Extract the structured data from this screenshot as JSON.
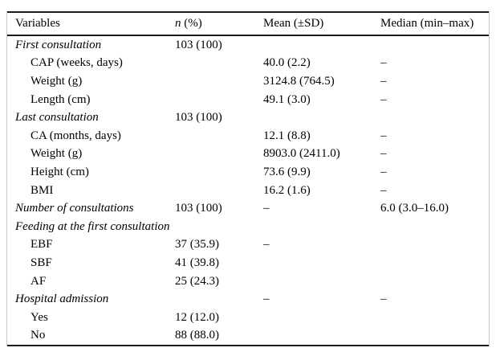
{
  "page": {
    "background": "#ffffff"
  },
  "colors": {
    "text": "#000000",
    "rule": "#1b1b1b",
    "frame": "#c9c9c9",
    "background": "#ffffff"
  },
  "table": {
    "columns": [
      {
        "italic_part": "",
        "label": "Variables"
      },
      {
        "italic_part": "n",
        "label": " (%)"
      },
      {
        "italic_part": "",
        "label": "Mean (±SD)"
      },
      {
        "italic_part": "",
        "label": "Median (min–max)"
      }
    ],
    "rows": [
      {
        "variable": "First consultation",
        "style": "group",
        "n": "103 (100)",
        "mean": "",
        "median": ""
      },
      {
        "variable": "CAP (weeks, days)",
        "style": "sub",
        "n": "",
        "mean": "40.0 (2.2)",
        "median": "–"
      },
      {
        "variable": "Weight (g)",
        "style": "sub",
        "n": "",
        "mean": "3124.8 (764.5)",
        "median": "–"
      },
      {
        "variable": "Length (cm)",
        "style": "sub",
        "n": "",
        "mean": "49.1 (3.0)",
        "median": "–"
      },
      {
        "variable": "Last consultation",
        "style": "group",
        "n": "103 (100)",
        "mean": "",
        "median": ""
      },
      {
        "variable": "CA (months, days)",
        "style": "sub",
        "n": "",
        "mean": "12.1 (8.8)",
        "median": "–"
      },
      {
        "variable": "Weight (g)",
        "style": "sub",
        "n": "",
        "mean": "8903.0 (2411.0)",
        "median": "–"
      },
      {
        "variable": "Height (cm)",
        "style": "sub",
        "n": "",
        "mean": "73.6 (9.9)",
        "median": "–"
      },
      {
        "variable": "BMI",
        "style": "sub",
        "n": "",
        "mean": "16.2 (1.6)",
        "median": "–"
      },
      {
        "variable": "Number of consultations",
        "style": "group",
        "n": "103 (100)",
        "mean": "–",
        "median": "6.0 (3.0–16.0)"
      },
      {
        "variable": "Feeding at the first consultation",
        "style": "group",
        "n": "",
        "mean": "",
        "median": ""
      },
      {
        "variable": "EBF",
        "style": "sub",
        "n": "37 (35.9)",
        "mean": "–",
        "median": ""
      },
      {
        "variable": "SBF",
        "style": "sub",
        "n": "41 (39.8)",
        "mean": "",
        "median": ""
      },
      {
        "variable": "AF",
        "style": "sub",
        "n": "25 (24.3)",
        "mean": "",
        "median": ""
      },
      {
        "variable": "Hospital admission",
        "style": "group",
        "n": "",
        "mean": "–",
        "median": "–"
      },
      {
        "variable": "Yes",
        "style": "sub",
        "n": "12 (12.0)",
        "mean": "",
        "median": ""
      },
      {
        "variable": "No",
        "style": "sub",
        "n": "88 (88.0)",
        "mean": "",
        "median": ""
      }
    ]
  }
}
